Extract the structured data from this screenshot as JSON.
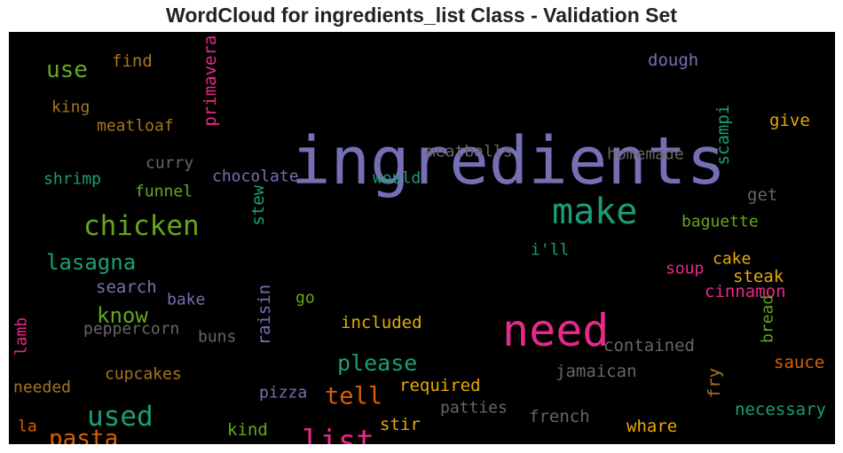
{
  "chart_data": {
    "type": "wordcloud",
    "title": "WordCloud for ingredients_list Class - Validation Set",
    "background": "#000000",
    "palette": {
      "purple": "#7570b3",
      "green": "#1b9e77",
      "pink": "#e7298a",
      "olive": "#66a61e",
      "orange": "#d95f02",
      "gold": "#e6ab02",
      "brown": "#a6761d",
      "gray": "#666666"
    },
    "words": [
      {
        "text": "ingredients",
        "color": "#7570b3"
      },
      {
        "text": "need",
        "color": "#e7298a"
      },
      {
        "text": "make",
        "color": "#1b9e77"
      },
      {
        "text": "chicken",
        "color": "#66a61e"
      },
      {
        "text": "list",
        "color": "#e7298a"
      },
      {
        "text": "used",
        "color": "#1b9e77"
      },
      {
        "text": "use",
        "color": "#66a61e"
      },
      {
        "text": "pasta",
        "color": "#d95f02"
      },
      {
        "text": "lasagna",
        "color": "#1b9e77"
      },
      {
        "text": "please",
        "color": "#1b9e77"
      },
      {
        "text": "tell",
        "color": "#d95f02"
      },
      {
        "text": "know",
        "color": "#66a61e"
      },
      {
        "text": "find",
        "color": "#a6761d"
      },
      {
        "text": "king",
        "color": "#a6761d"
      },
      {
        "text": "meatloaf",
        "color": "#a6761d"
      },
      {
        "text": "primavera",
        "color": "#e7298a"
      },
      {
        "text": "dough",
        "color": "#7570b3"
      },
      {
        "text": "give",
        "color": "#e6ab02"
      },
      {
        "text": "scampi",
        "color": "#1b9e77"
      },
      {
        "text": "meatballs",
        "color": "#666666"
      },
      {
        "text": "homemade",
        "color": "#666666"
      },
      {
        "text": "curry",
        "color": "#666666"
      },
      {
        "text": "chocolate",
        "color": "#7570b3"
      },
      {
        "text": "would",
        "color": "#1b9e77"
      },
      {
        "text": "shrimp",
        "color": "#1b9e77"
      },
      {
        "text": "funnel",
        "color": "#66a61e"
      },
      {
        "text": "stew",
        "color": "#1b9e77"
      },
      {
        "text": "get",
        "color": "#666666"
      },
      {
        "text": "baguette",
        "color": "#66a61e"
      },
      {
        "text": "i'll",
        "color": "#1b9e77"
      },
      {
        "text": "cake",
        "color": "#e6ab02"
      },
      {
        "text": "soup",
        "color": "#e7298a"
      },
      {
        "text": "steak",
        "color": "#e6ab02"
      },
      {
        "text": "cinnamon",
        "color": "#e7298a"
      },
      {
        "text": "search",
        "color": "#7570b3"
      },
      {
        "text": "bake",
        "color": "#7570b3"
      },
      {
        "text": "go",
        "color": "#66a61e"
      },
      {
        "text": "raisin",
        "color": "#7570b3"
      },
      {
        "text": "peppercorn",
        "color": "#666666"
      },
      {
        "text": "buns",
        "color": "#666666"
      },
      {
        "text": "included",
        "color": "#e6ab02"
      },
      {
        "text": "bread",
        "color": "#66a61e"
      },
      {
        "text": "contained",
        "color": "#666666"
      },
      {
        "text": "lamb",
        "color": "#e7298a"
      },
      {
        "text": "sauce",
        "color": "#d95f02"
      },
      {
        "text": "cupcakes",
        "color": "#a6761d"
      },
      {
        "text": "jamaican",
        "color": "#666666"
      },
      {
        "text": "needed",
        "color": "#a6761d"
      },
      {
        "text": "pizza",
        "color": "#7570b3"
      },
      {
        "text": "required",
        "color": "#e6ab02"
      },
      {
        "text": "fry",
        "color": "#a6761d"
      },
      {
        "text": "necessary",
        "color": "#1b9e77"
      },
      {
        "text": "patties",
        "color": "#666666"
      },
      {
        "text": "french",
        "color": "#666666"
      },
      {
        "text": "la",
        "color": "#d95f02"
      },
      {
        "text": "kind",
        "color": "#66a61e"
      },
      {
        "text": "stir",
        "color": "#e6ab02"
      },
      {
        "text": "whare",
        "color": "#e6ab02"
      }
    ]
  }
}
